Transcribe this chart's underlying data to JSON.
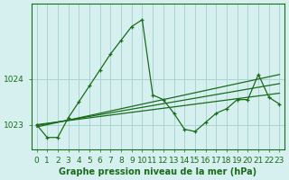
{
  "title": "Graphe pression niveau de la mer (hPa)",
  "background_color": "#d6f0f0",
  "grid_color": "#aad4d4",
  "line_color": "#1a6b1a",
  "xlim": [
    -0.5,
    23.5
  ],
  "ylim": [
    1022.45,
    1025.65
  ],
  "yticks": [
    1023,
    1024
  ],
  "xticks": [
    0,
    1,
    2,
    3,
    4,
    5,
    6,
    7,
    8,
    9,
    10,
    11,
    12,
    13,
    14,
    15,
    16,
    17,
    18,
    19,
    20,
    21,
    22,
    23
  ],
  "main_series": [
    1023.0,
    1022.72,
    1022.72,
    1023.15,
    1023.5,
    1023.85,
    1024.2,
    1024.55,
    1024.85,
    1025.15,
    1025.3,
    1023.65,
    1023.55,
    1023.25,
    1022.9,
    1022.85,
    1023.05,
    1023.25,
    1023.35,
    1023.55,
    1023.55,
    1024.1,
    1023.6,
    1023.45
  ],
  "trend1": [
    1023.0,
    1023.03,
    1023.06,
    1023.09,
    1023.12,
    1023.15,
    1023.18,
    1023.21,
    1023.24,
    1023.27,
    1023.3,
    1023.33,
    1023.36,
    1023.39,
    1023.42,
    1023.45,
    1023.48,
    1023.51,
    1023.54,
    1023.57,
    1023.6,
    1023.63,
    1023.66,
    1023.69
  ],
  "trend2": [
    1022.98,
    1023.02,
    1023.06,
    1023.1,
    1023.14,
    1023.18,
    1023.22,
    1023.26,
    1023.3,
    1023.34,
    1023.38,
    1023.42,
    1023.46,
    1023.5,
    1023.54,
    1023.58,
    1023.62,
    1023.66,
    1023.7,
    1023.74,
    1023.78,
    1023.82,
    1023.86,
    1023.9
  ],
  "trend3": [
    1022.95,
    1023.0,
    1023.05,
    1023.1,
    1023.15,
    1023.2,
    1023.25,
    1023.3,
    1023.35,
    1023.4,
    1023.45,
    1023.5,
    1023.55,
    1023.6,
    1023.65,
    1023.7,
    1023.75,
    1023.8,
    1023.85,
    1023.9,
    1023.95,
    1024.0,
    1024.05,
    1024.1
  ],
  "xlabel_fontsize": 7.0,
  "tick_fontsize": 6.5
}
